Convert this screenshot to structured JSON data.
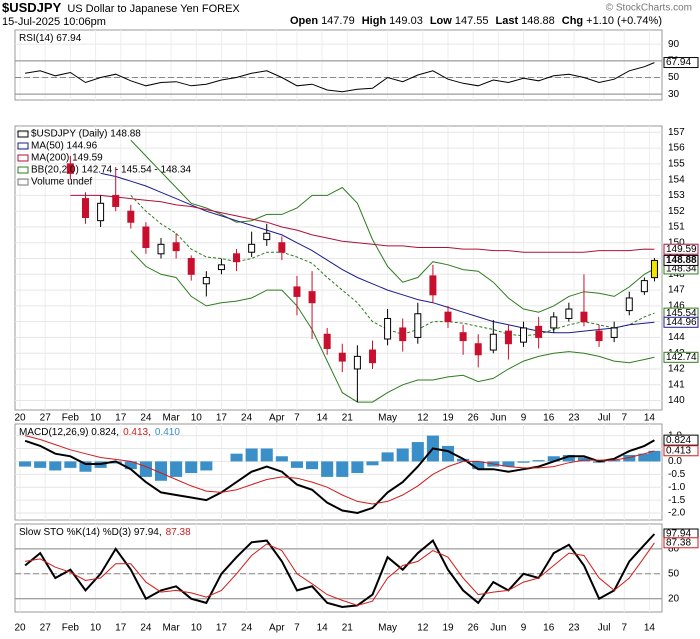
{
  "header": {
    "symbol": "$USDJPY",
    "name": "US Dollar to Japanese Yen FOREX",
    "date": "15-Jul-2025 10:06pm",
    "quote": [
      {
        "label": "Open",
        "value": 147.79
      },
      {
        "label": "High",
        "value": 149.03
      },
      {
        "label": "Low",
        "value": 147.55
      },
      {
        "label": "Last",
        "value": 148.88
      },
      {
        "label": "Chg",
        "value": "+1.10 (+0.74%)"
      }
    ],
    "credit": "© StockCharts.com"
  },
  "xlim": [
    -1,
    127.5
  ],
  "xticks": [
    {
      "value": 0,
      "label": "20"
    },
    {
      "value": 5,
      "label": "27"
    },
    {
      "value": 10,
      "label": "Feb"
    },
    {
      "value": 15,
      "label": "10"
    },
    {
      "value": 20,
      "label": "17"
    },
    {
      "value": 25,
      "label": "24"
    },
    {
      "value": 30,
      "label": "Mar"
    },
    {
      "value": 35,
      "label": "10"
    },
    {
      "value": 40,
      "label": "17"
    },
    {
      "value": 45,
      "label": "24"
    },
    {
      "value": 51,
      "label": "Apr"
    },
    {
      "value": 55,
      "label": "7"
    },
    {
      "value": 60,
      "label": "14"
    },
    {
      "value": 65,
      "label": "21"
    },
    {
      "value": 73,
      "label": "May"
    },
    {
      "value": 80,
      "label": "12"
    },
    {
      "value": 85,
      "label": "19"
    },
    {
      "value": 90,
      "label": "26"
    },
    {
      "value": 95,
      "label": "Jun"
    },
    {
      "value": 100,
      "label": "9"
    },
    {
      "value": 105,
      "label": "16"
    },
    {
      "value": 110,
      "label": "23"
    },
    {
      "value": 116,
      "label": "Jul"
    },
    {
      "value": 120,
      "label": "7"
    },
    {
      "value": 125,
      "label": "14"
    }
  ],
  "chart_data": [
    {
      "type": "line",
      "legend": "inline",
      "grid": true,
      "ylim": [
        23,
        107
      ],
      "yticks": [
        30,
        50,
        70,
        90
      ],
      "levels": {
        "solid": [
          30,
          70
        ],
        "dashed": [
          50
        ]
      },
      "x": [
        1,
        4,
        7,
        10,
        13,
        16,
        19,
        22,
        25,
        28,
        31,
        34,
        37,
        40,
        43,
        46,
        49,
        52,
        55,
        58,
        61,
        64,
        67,
        70,
        73,
        76,
        79,
        82,
        85,
        88,
        91,
        94,
        97,
        100,
        103,
        106,
        109,
        112,
        115,
        118,
        121,
        124,
        126
      ],
      "series": [
        {
          "name": "RSI(14) 67.94",
          "color": "#000000",
          "style": "line",
          "end_label": true,
          "values": [
            55,
            58,
            52,
            56,
            44,
            50,
            54,
            46,
            40,
            44,
            45,
            40,
            42,
            47,
            50,
            55,
            58,
            50,
            40,
            42,
            35,
            33,
            36,
            37,
            50,
            45,
            53,
            58,
            48,
            43,
            40,
            47,
            44,
            49,
            46,
            52,
            54,
            50,
            44,
            48,
            58,
            63,
            67.94
          ]
        }
      ]
    },
    {
      "type": "candlestick",
      "legend": "stacked",
      "grid": true,
      "ylim": [
        139.4,
        157.4
      ],
      "yticks": [
        140,
        141,
        142,
        143,
        144,
        145,
        146,
        147,
        148,
        149,
        150,
        151,
        152,
        153,
        154,
        155,
        156,
        157
      ],
      "x": [
        10,
        13,
        16,
        19,
        22,
        25,
        28,
        31,
        34,
        37,
        40,
        43,
        46,
        49,
        52,
        55,
        58,
        61,
        64,
        67,
        70,
        73,
        76,
        79,
        82,
        85,
        88,
        91,
        94,
        97,
        100,
        103,
        106,
        109,
        112,
        115,
        118,
        121,
        124,
        126
      ],
      "candles": {
        "name": "$USDJPY (Daily) 148.88",
        "up_color": "#000000",
        "down_color": "#c8102e",
        "last_color": "#f2e600",
        "end_label": true,
        "open": [
          155.0,
          152.8,
          151.4,
          153.0,
          152.0,
          151.0,
          149.3,
          150.0,
          149.0,
          147.4,
          148.3,
          149.3,
          149.4,
          150.2,
          150.0,
          147.2,
          146.9,
          144.2,
          143.0,
          142.0,
          143.2,
          143.9,
          144.6,
          144.0,
          147.9,
          145.6,
          144.3,
          143.6,
          143.2,
          144.4,
          143.7,
          144.7,
          144.6,
          145.2,
          145.6,
          144.4,
          144.0,
          145.7,
          146.9,
          147.79
        ],
        "high": [
          155.5,
          153.2,
          153.0,
          154.8,
          152.4,
          151.3,
          150.3,
          150.6,
          149.2,
          148.2,
          149.0,
          149.6,
          150.7,
          151.2,
          150.4,
          147.9,
          148.2,
          144.6,
          143.6,
          143.5,
          143.8,
          145.8,
          145.2,
          146.2,
          148.6,
          146.0,
          144.8,
          144.2,
          145.1,
          144.8,
          145.0,
          145.3,
          145.6,
          146.2,
          148.0,
          144.8,
          145.0,
          146.9,
          147.8,
          149.03
        ],
        "low": [
          154.0,
          151.2,
          151.0,
          152.0,
          150.9,
          149.3,
          149.0,
          149.0,
          147.6,
          146.6,
          148.0,
          148.2,
          149.1,
          149.8,
          148.9,
          145.4,
          143.9,
          142.9,
          141.8,
          139.9,
          142.0,
          143.5,
          143.1,
          143.6,
          146.2,
          144.6,
          142.9,
          142.1,
          143.0,
          142.6,
          143.4,
          143.3,
          144.3,
          145.0,
          144.7,
          143.4,
          143.7,
          145.4,
          146.7,
          147.55
        ],
        "close": [
          154.4,
          151.6,
          152.5,
          152.3,
          151.3,
          149.7,
          149.9,
          149.5,
          148.0,
          147.8,
          148.6,
          148.8,
          149.9,
          150.6,
          149.4,
          146.6,
          146.2,
          143.3,
          142.5,
          142.8,
          142.4,
          145.2,
          143.8,
          145.5,
          146.7,
          145.0,
          143.8,
          142.9,
          144.2,
          143.6,
          144.6,
          144.0,
          145.3,
          145.8,
          145.0,
          143.8,
          144.6,
          146.5,
          147.6,
          148.88
        ]
      },
      "series": [
        {
          "name": "MA(50) 144.96",
          "color": "#1c1c8f",
          "style": "line",
          "end_label": true,
          "values": [
            null,
            null,
            154.4,
            154.2,
            153.9,
            153.6,
            153.2,
            152.8,
            152.4,
            152.0,
            151.7,
            151.4,
            151.1,
            150.8,
            150.5,
            150.0,
            149.5,
            148.9,
            148.3,
            147.8,
            147.4,
            147.0,
            146.7,
            146.4,
            146.2,
            145.9,
            145.6,
            145.3,
            145.0,
            144.8,
            144.6,
            144.4,
            144.3,
            144.3,
            144.4,
            144.5,
            144.6,
            144.8,
            144.9,
            144.96
          ]
        },
        {
          "name": "MA(200) 149.59",
          "color": "#b0103a",
          "style": "line",
          "end_label": true,
          "values": [
            153.0,
            153.0,
            153.0,
            152.9,
            152.8,
            152.7,
            152.6,
            152.4,
            152.3,
            152.1,
            151.9,
            151.7,
            151.5,
            151.3,
            151.0,
            150.8,
            150.5,
            150.3,
            150.1,
            150.0,
            149.9,
            149.8,
            149.8,
            149.7,
            149.7,
            149.7,
            149.6,
            149.6,
            149.5,
            149.5,
            149.4,
            149.4,
            149.4,
            149.4,
            149.4,
            149.5,
            149.5,
            149.5,
            149.6,
            149.59
          ]
        }
      ],
      "bands": {
        "name": "BB(20,2.0) 142.74 - 145.54 - 148.34",
        "color": "#2e7d1e",
        "upper": [
          null,
          null,
          null,
          null,
          156.5,
          155.5,
          154.5,
          153.5,
          152.5,
          152.2,
          151.8,
          151.3,
          151.4,
          151.8,
          151.8,
          152.2,
          153.0,
          153.0,
          153.5,
          152.5,
          150.2,
          148.5,
          147.5,
          147.8,
          148.8,
          148.6,
          148.3,
          148.2,
          147.5,
          146.5,
          145.8,
          145.6,
          146.0,
          146.6,
          146.9,
          146.8,
          146.6,
          147.2,
          148.0,
          148.34
        ],
        "middle": [
          null,
          null,
          null,
          null,
          153.0,
          152.0,
          151.2,
          150.6,
          149.6,
          149.1,
          149.0,
          148.8,
          149.0,
          149.4,
          149.4,
          149.1,
          148.7,
          147.8,
          147.0,
          146.2,
          145.0,
          144.5,
          144.2,
          144.5,
          145.0,
          145.0,
          144.9,
          144.7,
          144.5,
          144.2,
          144.1,
          144.2,
          144.5,
          144.8,
          145.0,
          144.8,
          144.6,
          144.8,
          145.3,
          145.54
        ],
        "lower": [
          null,
          null,
          null,
          null,
          149.5,
          148.5,
          148.0,
          147.8,
          146.6,
          146.0,
          146.2,
          146.3,
          146.5,
          147.0,
          147.0,
          146.0,
          144.5,
          142.5,
          140.5,
          139.9,
          139.9,
          140.5,
          141.0,
          141.3,
          141.3,
          141.5,
          141.6,
          141.2,
          141.4,
          142.0,
          142.5,
          142.8,
          143.0,
          143.1,
          143.0,
          142.8,
          142.5,
          142.4,
          142.6,
          142.74
        ]
      },
      "note": "Volume undef"
    },
    {
      "type": "combo",
      "legend": "inline",
      "grid": true,
      "ylim": [
        -2.27,
        1.45
      ],
      "yticks": [
        {
          "value": 1,
          "label": "1.0"
        },
        0.5,
        {
          "value": 0,
          "label": "0.0"
        },
        -0.5,
        {
          "value": -1,
          "label": "-1.0"
        },
        -1.5,
        {
          "value": -2,
          "label": "-2.0"
        }
      ],
      "x": [
        1,
        4,
        7,
        10,
        13,
        16,
        19,
        22,
        25,
        28,
        31,
        34,
        37,
        40,
        43,
        46,
        49,
        52,
        55,
        58,
        61,
        64,
        67,
        70,
        73,
        76,
        79,
        82,
        85,
        88,
        91,
        94,
        97,
        100,
        103,
        106,
        109,
        112,
        115,
        118,
        121,
        124,
        126
      ],
      "series": [
        {
          "name": "0.410",
          "color": "#3a8fc8",
          "style": "bar",
          "end_label": false,
          "values": [
            -0.2,
            -0.25,
            -0.35,
            -0.25,
            -0.4,
            -0.25,
            -0.08,
            -0.3,
            -0.6,
            -0.75,
            -0.6,
            -0.45,
            -0.35,
            0.0,
            0.3,
            0.5,
            0.5,
            0.2,
            -0.25,
            -0.3,
            -0.6,
            -0.6,
            -0.45,
            -0.15,
            0.35,
            0.5,
            0.75,
            1.0,
            0.6,
            0.1,
            -0.3,
            -0.2,
            -0.2,
            -0.05,
            0.05,
            0.2,
            0.25,
            0.15,
            -0.05,
            0.05,
            0.25,
            0.3,
            0.41
          ]
        },
        {
          "name": "MACD(12,26,9) 0.824,",
          "color": "#000000",
          "style": "line",
          "width": 2,
          "end_label": true,
          "values": [
            0.8,
            0.6,
            0.3,
            0.2,
            -0.1,
            -0.1,
            0.0,
            -0.3,
            -0.8,
            -1.2,
            -1.3,
            -1.4,
            -1.5,
            -1.2,
            -0.8,
            -0.4,
            -0.2,
            -0.4,
            -0.9,
            -1.1,
            -1.6,
            -1.9,
            -2.0,
            -1.8,
            -1.2,
            -0.8,
            -0.2,
            0.5,
            0.4,
            0.1,
            -0.3,
            -0.3,
            -0.4,
            -0.3,
            -0.2,
            0.0,
            0.2,
            0.2,
            0.0,
            0.1,
            0.4,
            0.6,
            0.824
          ]
        },
        {
          "name": "0.413,",
          "color": "#d01c1c",
          "style": "line",
          "end_label": true,
          "values": [
            1.0,
            0.85,
            0.65,
            0.45,
            0.3,
            0.15,
            0.08,
            0.0,
            -0.2,
            -0.45,
            -0.7,
            -0.95,
            -1.15,
            -1.2,
            -1.1,
            -0.9,
            -0.7,
            -0.6,
            -0.65,
            -0.8,
            -1.0,
            -1.3,
            -1.55,
            -1.65,
            -1.55,
            -1.3,
            -0.95,
            -0.5,
            -0.2,
            0.0,
            0.0,
            -0.1,
            -0.2,
            -0.25,
            -0.25,
            -0.2,
            -0.05,
            0.05,
            0.05,
            0.05,
            0.15,
            0.3,
            0.413
          ]
        }
      ],
      "legend_order": [
        1,
        2,
        0
      ]
    },
    {
      "type": "line",
      "legend": "inline",
      "grid": true,
      "ylim": [
        4,
        110
      ],
      "yticks": [
        20,
        50,
        80
      ],
      "levels": {
        "solid": [
          20,
          80
        ],
        "dashed": [
          50
        ]
      },
      "x": [
        1,
        4,
        7,
        10,
        13,
        16,
        19,
        22,
        25,
        28,
        31,
        34,
        37,
        40,
        43,
        46,
        49,
        52,
        55,
        58,
        61,
        64,
        67,
        70,
        73,
        76,
        79,
        82,
        85,
        88,
        91,
        94,
        97,
        100,
        103,
        106,
        109,
        112,
        115,
        118,
        121,
        124,
        126
      ],
      "series": [
        {
          "name": "Slow STO %K(14) %D(3) 97.94,",
          "color": "#000000",
          "style": "line",
          "width": 2,
          "end_label": true,
          "values": [
            60,
            75,
            45,
            55,
            30,
            50,
            80,
            55,
            20,
            30,
            35,
            20,
            15,
            50,
            70,
            88,
            90,
            65,
            30,
            35,
            15,
            10,
            12,
            25,
            70,
            55,
            75,
            90,
            55,
            30,
            15,
            40,
            30,
            50,
            45,
            75,
            85,
            60,
            20,
            30,
            65,
            85,
            97.94
          ]
        },
        {
          "name": "87.38",
          "color": "#d01c1c",
          "style": "line",
          "end_label": true,
          "values": [
            65,
            68,
            58,
            52,
            42,
            45,
            62,
            62,
            40,
            28,
            30,
            27,
            22,
            30,
            50,
            72,
            86,
            78,
            50,
            38,
            25,
            18,
            12,
            17,
            45,
            60,
            65,
            78,
            70,
            45,
            25,
            28,
            30,
            40,
            45,
            60,
            75,
            72,
            45,
            30,
            45,
            70,
            87.38
          ]
        }
      ]
    }
  ]
}
